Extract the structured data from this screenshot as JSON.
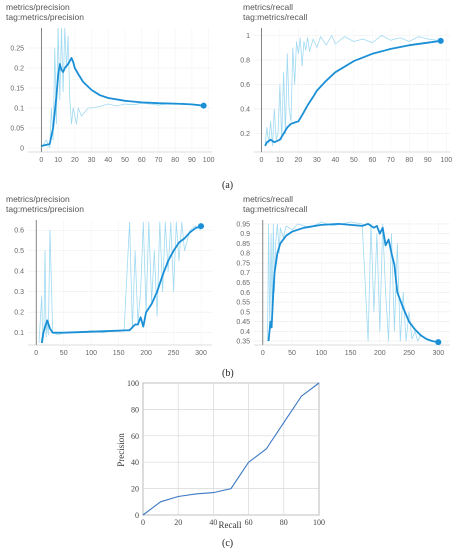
{
  "chart_data": [
    {
      "type": "line",
      "title": "metrics/precision",
      "subtitle": "tag:metrics/precision",
      "xlim": [
        -8,
        102
      ],
      "ylim": [
        -0.01,
        0.3
      ],
      "xticks": [
        0,
        10,
        20,
        30,
        40,
        50,
        60,
        70,
        80,
        90,
        100
      ],
      "yticks": [
        0,
        0.05,
        0.1,
        0.15,
        0.2,
        0.25
      ],
      "ytick_labels": [
        "0",
        "0.05",
        "0.1",
        "0.15",
        "0.2",
        "0.25"
      ],
      "series": [
        {
          "role": "smoothed",
          "color": "#1a8fd6",
          "x": [
            0,
            5,
            7,
            8,
            9,
            10,
            11,
            12,
            13,
            14,
            16,
            18,
            19,
            20,
            22,
            25,
            30,
            35,
            40,
            50,
            60,
            70,
            80,
            90,
            97
          ],
          "y": [
            0.005,
            0.01,
            0.05,
            0.09,
            0.13,
            0.18,
            0.21,
            0.195,
            0.19,
            0.2,
            0.21,
            0.225,
            0.215,
            0.2,
            0.185,
            0.165,
            0.145,
            0.132,
            0.125,
            0.118,
            0.114,
            0.112,
            0.111,
            0.109,
            0.106
          ]
        },
        {
          "role": "raw",
          "color": "#8fd3f0",
          "x": [
            0,
            3,
            5,
            6,
            7,
            8,
            9,
            10,
            11,
            12,
            13,
            14,
            15,
            16,
            17,
            18,
            19,
            20,
            21,
            22,
            24,
            26,
            28,
            30,
            35,
            40,
            45,
            50,
            55,
            60,
            65,
            70,
            75,
            80,
            85,
            90,
            95,
            97
          ],
          "y": [
            0.0,
            0.02,
            0.0,
            0.1,
            0.02,
            0.25,
            0.06,
            0.3,
            0.12,
            0.3,
            0.14,
            0.3,
            0.2,
            0.28,
            0.12,
            0.06,
            0.1,
            0.08,
            0.06,
            0.1,
            0.08,
            0.09,
            0.1,
            0.1,
            0.104,
            0.11,
            0.105,
            0.11,
            0.108,
            0.112,
            0.11,
            0.107,
            0.11,
            0.109,
            0.112,
            0.108,
            0.105,
            0.11
          ]
        }
      ]
    },
    {
      "type": "line",
      "title": "metrics/recall",
      "subtitle": "tag:metrics/recall",
      "xlim": [
        -4,
        102
      ],
      "ylim": [
        0.05,
        1.06
      ],
      "xticks": [
        0,
        10,
        20,
        30,
        40,
        50,
        60,
        70,
        80,
        90,
        100
      ],
      "yticks": [
        0.2,
        0.4,
        0.6,
        0.8,
        1
      ],
      "ytick_labels": [
        "0.2",
        "0.4",
        "0.6",
        "0.8",
        "1"
      ],
      "series": [
        {
          "role": "smoothed",
          "color": "#1a8fd6",
          "x": [
            2,
            3,
            5,
            7,
            10,
            12,
            14,
            16,
            18,
            20,
            22,
            25,
            28,
            30,
            35,
            40,
            50,
            60,
            70,
            80,
            90,
            97
          ],
          "y": [
            0.1,
            0.13,
            0.15,
            0.13,
            0.15,
            0.2,
            0.25,
            0.28,
            0.29,
            0.3,
            0.35,
            0.43,
            0.5,
            0.55,
            0.63,
            0.7,
            0.79,
            0.85,
            0.89,
            0.92,
            0.94,
            0.955
          ]
        },
        {
          "role": "raw",
          "color": "#8fd3f0",
          "x": [
            2,
            3,
            4,
            5,
            6,
            7,
            8,
            9,
            10,
            11,
            12,
            13,
            14,
            15,
            16,
            17,
            18,
            19,
            20,
            21,
            22,
            23,
            24,
            25,
            26,
            28,
            30,
            32,
            35,
            38,
            40,
            45,
            50,
            55,
            60,
            65,
            70,
            75,
            80,
            85,
            90,
            95,
            97
          ],
          "y": [
            0.1,
            0.25,
            0.12,
            0.3,
            0.1,
            0.4,
            0.15,
            0.2,
            0.6,
            0.15,
            0.7,
            0.2,
            0.85,
            0.4,
            0.3,
            0.9,
            0.6,
            0.95,
            0.85,
            0.98,
            0.75,
            0.95,
            0.88,
            0.98,
            0.87,
            0.97,
            0.9,
            0.99,
            0.92,
            1.0,
            0.93,
            0.99,
            0.95,
            0.97,
            0.94,
            1.0,
            0.96,
            0.98,
            0.95,
            0.99,
            0.97,
            0.96,
            0.98
          ]
        }
      ]
    },
    {
      "type": "line",
      "title": "metrics/precision",
      "subtitle": "tag:metrics/precision",
      "xlim": [
        -15,
        320
      ],
      "ylim": [
        0.04,
        0.65
      ],
      "xticks": [
        0,
        50,
        100,
        150,
        200,
        250,
        300
      ],
      "yticks": [
        0.1,
        0.2,
        0.3,
        0.4,
        0.5,
        0.6
      ],
      "ytick_labels": [
        "0.1",
        "0.2",
        "0.3",
        "0.4",
        "0.5",
        "0.6"
      ],
      "series": [
        {
          "role": "smoothed",
          "color": "#1a8fd6",
          "x": [
            10,
            13,
            15,
            20,
            25,
            30,
            50,
            100,
            150,
            170,
            180,
            185,
            190,
            195,
            200,
            210,
            220,
            230,
            240,
            250,
            260,
            270,
            280,
            290,
            300
          ],
          "y": [
            0.05,
            0.1,
            0.12,
            0.16,
            0.12,
            0.1,
            0.1,
            0.105,
            0.11,
            0.112,
            0.14,
            0.14,
            0.175,
            0.13,
            0.2,
            0.24,
            0.3,
            0.38,
            0.45,
            0.5,
            0.54,
            0.56,
            0.59,
            0.61,
            0.62
          ]
        },
        {
          "role": "raw",
          "color": "#8fd3f0",
          "x": [
            5,
            10,
            12,
            14,
            16,
            18,
            20,
            22,
            25,
            30,
            40,
            50,
            60,
            80,
            100,
            120,
            140,
            160,
            170,
            175,
            180,
            185,
            190,
            195,
            200,
            205,
            210,
            215,
            220,
            225,
            230,
            235,
            240,
            245,
            250,
            255,
            260,
            265,
            270,
            280,
            290,
            300
          ],
          "y": [
            0.05,
            0.28,
            0.05,
            0.1,
            0.5,
            0.08,
            0.15,
            0.09,
            0.6,
            0.1,
            0.09,
            0.1,
            0.1,
            0.1,
            0.11,
            0.1,
            0.11,
            0.11,
            0.64,
            0.12,
            0.5,
            0.15,
            0.3,
            0.64,
            0.2,
            0.64,
            0.25,
            0.5,
            0.18,
            0.64,
            0.3,
            0.64,
            0.4,
            0.64,
            0.3,
            0.64,
            0.45,
            0.64,
            0.5,
            0.6,
            0.62,
            0.6
          ]
        }
      ]
    },
    {
      "type": "line",
      "title": "metrics/recall",
      "subtitle": "tag:metrics/recall",
      "xlim": [
        -15,
        320
      ],
      "ylim": [
        0.33,
        0.97
      ],
      "xticks": [
        0,
        50,
        100,
        150,
        200,
        250,
        300
      ],
      "yticks": [
        0.35,
        0.4,
        0.45,
        0.5,
        0.55,
        0.6,
        0.65,
        0.7,
        0.75,
        0.8,
        0.85,
        0.9,
        0.95
      ],
      "ytick_labels": [
        "0.35",
        "0.4",
        "0.45",
        "0.5",
        "0.55",
        "0.6",
        "0.65",
        "0.7",
        "0.75",
        "0.8",
        "0.85",
        "0.9",
        "0.95"
      ],
      "series": [
        {
          "role": "smoothed",
          "color": "#1a8fd6",
          "x": [
            10,
            13,
            15,
            18,
            20,
            25,
            30,
            40,
            50,
            70,
            100,
            130,
            150,
            170,
            180,
            190,
            195,
            200,
            205,
            210,
            215,
            220,
            225,
            230,
            240,
            250,
            260,
            270,
            280,
            290,
            300
          ],
          "y": [
            0.35,
            0.45,
            0.42,
            0.6,
            0.7,
            0.8,
            0.85,
            0.89,
            0.91,
            0.93,
            0.945,
            0.95,
            0.945,
            0.94,
            0.95,
            0.93,
            0.94,
            0.9,
            0.93,
            0.84,
            0.87,
            0.8,
            0.74,
            0.6,
            0.52,
            0.45,
            0.41,
            0.38,
            0.36,
            0.35,
            0.345
          ]
        },
        {
          "role": "raw",
          "color": "#8fd3f0",
          "x": [
            8,
            10,
            12,
            14,
            16,
            18,
            20,
            22,
            25,
            28,
            30,
            35,
            40,
            50,
            60,
            80,
            100,
            120,
            150,
            170,
            180,
            185,
            190,
            195,
            200,
            205,
            210,
            215,
            220,
            225,
            230,
            235,
            240,
            245,
            250,
            255,
            260,
            265,
            270,
            280,
            290,
            300
          ],
          "y": [
            0.35,
            0.95,
            0.4,
            0.9,
            0.5,
            0.95,
            0.6,
            0.85,
            0.95,
            0.8,
            0.93,
            0.88,
            0.94,
            0.92,
            0.95,
            0.93,
            0.96,
            0.94,
            0.96,
            0.95,
            0.35,
            0.95,
            0.5,
            0.9,
            0.4,
            0.95,
            0.6,
            0.35,
            0.9,
            0.4,
            0.85,
            0.35,
            0.6,
            0.35,
            0.5,
            0.36,
            0.4,
            0.35,
            0.38,
            0.36,
            0.35,
            0.35
          ]
        }
      ]
    },
    {
      "type": "line",
      "xlabel": "Recall",
      "ylabel": "Precision",
      "xlim": [
        0,
        100
      ],
      "ylim": [
        0,
        100
      ],
      "grid": true,
      "xticks": [
        0,
        20,
        40,
        60,
        80,
        100
      ],
      "yticks": [
        0,
        20,
        40,
        60,
        80,
        100
      ],
      "series": [
        {
          "color": "#3b78c4",
          "x": [
            0,
            10,
            20,
            30,
            40,
            50,
            60,
            70,
            80,
            90,
            100
          ],
          "y": [
            0,
            10,
            14,
            16,
            17,
            20,
            40,
            50,
            70,
            90,
            100
          ]
        }
      ]
    }
  ],
  "labels": {
    "a": "(a)",
    "b": "(b)",
    "c": "(c)"
  }
}
